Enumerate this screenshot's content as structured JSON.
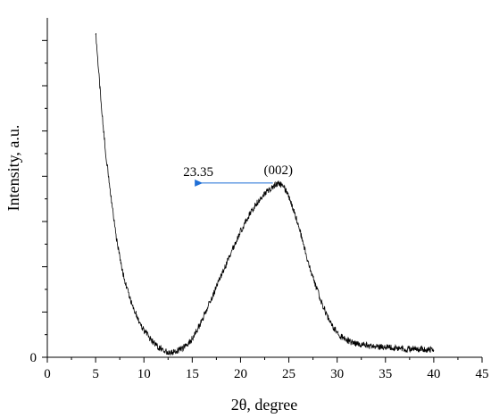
{
  "chart_data": {
    "type": "line",
    "title": "",
    "xlabel": "2θ, degree",
    "ylabel": "Intensity, a.u.",
    "xlim": [
      0,
      45
    ],
    "xticks": [
      0,
      5,
      10,
      15,
      20,
      25,
      30,
      35,
      40,
      45
    ],
    "ylim": [
      0,
      7.5
    ],
    "yticks_labeled": [
      0
    ],
    "grid": false,
    "legend": "none",
    "line_color": "#000000",
    "series": [
      {
        "x": [
          5,
          5.5,
          6,
          6.5,
          7,
          7.5,
          8,
          8.5,
          9,
          9.5,
          10,
          10.5,
          11,
          11.5,
          12,
          12.5,
          13,
          13.5,
          14,
          14.5,
          15,
          15.5,
          16,
          16.5,
          17,
          17.5,
          18,
          18.5,
          19,
          19.5,
          20,
          20.5,
          21,
          21.5,
          22,
          22.5,
          23,
          23.5,
          24,
          24.5,
          25,
          25.5,
          26,
          26.5,
          27,
          27.5,
          28,
          28.5,
          29,
          29.5,
          30,
          30.5,
          31,
          31.5,
          32,
          32.5,
          33,
          33.5,
          34,
          34.5,
          35,
          35.5,
          36,
          36.5,
          37,
          37.5,
          38,
          38.5,
          39,
          39.5,
          40
        ],
        "y": [
          7.2,
          5.8,
          4.6,
          3.7,
          2.85,
          2.2,
          1.7,
          1.35,
          1.05,
          0.8,
          0.6,
          0.45,
          0.32,
          0.22,
          0.16,
          0.12,
          0.12,
          0.15,
          0.2,
          0.28,
          0.42,
          0.6,
          0.82,
          1.05,
          1.3,
          1.55,
          1.8,
          2.05,
          2.3,
          2.55,
          2.78,
          2.98,
          3.18,
          3.35,
          3.5,
          3.6,
          3.7,
          3.8,
          3.85,
          3.75,
          3.55,
          3.25,
          2.9,
          2.5,
          2.1,
          1.75,
          1.45,
          1.15,
          0.9,
          0.7,
          0.55,
          0.45,
          0.38,
          0.33,
          0.3,
          0.28,
          0.26,
          0.25,
          0.24,
          0.23,
          0.22,
          0.21,
          0.2,
          0.2,
          0.19,
          0.19,
          0.18,
          0.18,
          0.17,
          0.17,
          0.16
        ]
      }
    ],
    "annotations": [
      {
        "text": "23.35",
        "arrow_from_x": 23.35,
        "arrow_to_x": 16,
        "at_y": 3.85,
        "arrow_color": "#1f6fd6"
      },
      {
        "text": "(002)",
        "at_x": 24,
        "at_y": 4.05
      }
    ]
  }
}
